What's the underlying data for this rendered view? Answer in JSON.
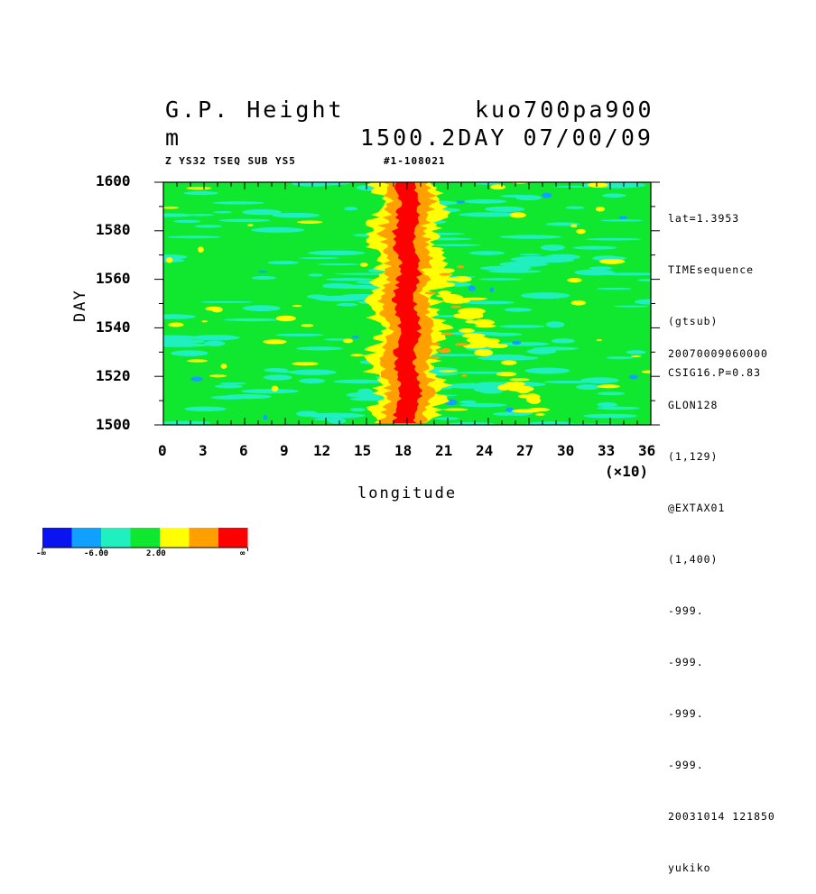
{
  "chart_data": {
    "type": "heatmap",
    "title_left": [
      "G.P. Height",
      "m"
    ],
    "title_right": [
      "kuo700pa900",
      "1500.2DAY 07/00/09"
    ],
    "subtitle_left": "Z YS32 TSEQ SUB YS5",
    "subtitle_right": "#1-108021",
    "xlabel": "longitude",
    "ylabel": "DAY",
    "x_scale_note": "(×10)",
    "xlim": [
      0,
      36
    ],
    "ylim": [
      1500,
      1600
    ],
    "x_ticks": [
      "0",
      "3",
      "6",
      "9",
      "12",
      "15",
      "18",
      "21",
      "24",
      "27",
      "30",
      "33",
      "36"
    ],
    "y_ticks": [
      "1500",
      "1520",
      "1540",
      "1560",
      "1580",
      "1600"
    ],
    "side_info_top": [
      "lat=1.3953",
      "TIMEsequence",
      "(gtsub)",
      "CSIG16.P=0.83"
    ],
    "side_info_bottom": [
      "20070009060000",
      "GLON128",
      "(1,129)",
      "@EXTAX01",
      "(1,400)",
      "-999.",
      "-999.",
      "-999.",
      "-999.",
      "20031014 121850",
      "yukiko"
    ],
    "colorbar": {
      "colors": [
        "#0a14f0",
        "#10a0ff",
        "#20f0c0",
        "#10e830",
        "#ffff00",
        "#ffa000",
        "#ff0000"
      ],
      "labels": [
        "-∞",
        "-6.00",
        "2.00",
        "∞"
      ]
    },
    "pattern_description_values": {
      "max_band_center_lon_x10": 18,
      "max_band_halfwidth_x10": 0.7,
      "secondary_band_lon_x10": [
        20.5,
        25
      ]
    }
  }
}
